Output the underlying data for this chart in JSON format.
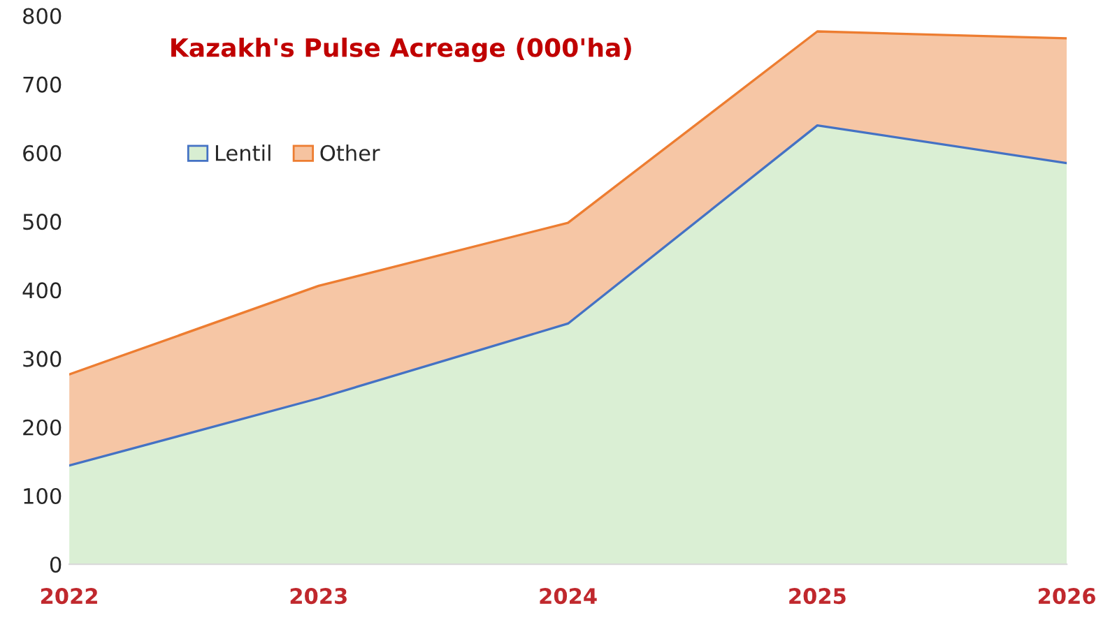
{
  "chart_data": {
    "type": "area",
    "title": "Kazakh's Pulse Acreage (000'ha)",
    "stacked": true,
    "categories": [
      "2022",
      "2023",
      "2024",
      "2025",
      "2026"
    ],
    "series": [
      {
        "name": "Lentil",
        "color": "#d8eed2",
        "values": [
          144,
          242,
          351,
          640,
          585
        ]
      },
      {
        "name": "Other",
        "color": "#f6c3a0",
        "values": [
          133,
          164,
          147,
          137,
          182
        ]
      }
    ],
    "ylim": [
      0,
      800
    ],
    "yticks": [
      0,
      100,
      200,
      300,
      400,
      500,
      600,
      700,
      800
    ],
    "grid": false,
    "legend": "top left"
  }
}
